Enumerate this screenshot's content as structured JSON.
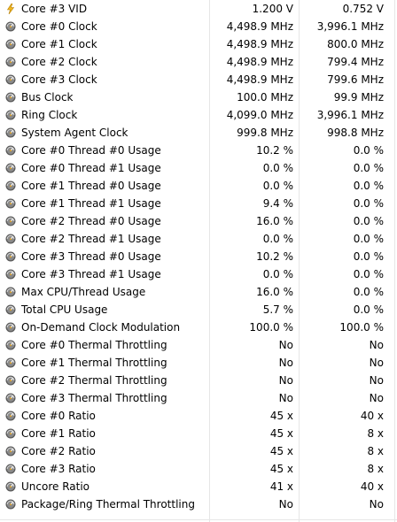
{
  "rows": [
    {
      "icon": "lightning-icon",
      "label": "Core #3 VID",
      "v1": "1.200 V",
      "v2": "0.752 V"
    },
    {
      "icon": "gauge-icon",
      "label": "Core #0 Clock",
      "v1": "4,498.9 MHz",
      "v2": "3,996.1 MHz"
    },
    {
      "icon": "gauge-icon",
      "label": "Core #1 Clock",
      "v1": "4,498.9 MHz",
      "v2": "800.0 MHz"
    },
    {
      "icon": "gauge-icon",
      "label": "Core #2 Clock",
      "v1": "4,498.9 MHz",
      "v2": "799.4 MHz"
    },
    {
      "icon": "gauge-icon",
      "label": "Core #3 Clock",
      "v1": "4,498.9 MHz",
      "v2": "799.6 MHz"
    },
    {
      "icon": "gauge-icon",
      "label": "Bus Clock",
      "v1": "100.0 MHz",
      "v2": "99.9 MHz"
    },
    {
      "icon": "gauge-icon",
      "label": "Ring Clock",
      "v1": "4,099.0 MHz",
      "v2": "3,996.1 MHz"
    },
    {
      "icon": "gauge-icon",
      "label": "System Agent Clock",
      "v1": "999.8 MHz",
      "v2": "998.8 MHz"
    },
    {
      "icon": "gauge-icon",
      "label": "Core #0 Thread #0 Usage",
      "v1": "10.2 %",
      "v2": "0.0 %"
    },
    {
      "icon": "gauge-icon",
      "label": "Core #0 Thread #1 Usage",
      "v1": "0.0 %",
      "v2": "0.0 %"
    },
    {
      "icon": "gauge-icon",
      "label": "Core #1 Thread #0 Usage",
      "v1": "0.0 %",
      "v2": "0.0 %"
    },
    {
      "icon": "gauge-icon",
      "label": "Core #1 Thread #1 Usage",
      "v1": "9.4 %",
      "v2": "0.0 %"
    },
    {
      "icon": "gauge-icon",
      "label": "Core #2 Thread #0 Usage",
      "v1": "16.0 %",
      "v2": "0.0 %"
    },
    {
      "icon": "gauge-icon",
      "label": "Core #2 Thread #1 Usage",
      "v1": "0.0 %",
      "v2": "0.0 %"
    },
    {
      "icon": "gauge-icon",
      "label": "Core #3 Thread #0 Usage",
      "v1": "10.2 %",
      "v2": "0.0 %"
    },
    {
      "icon": "gauge-icon",
      "label": "Core #3 Thread #1 Usage",
      "v1": "0.0 %",
      "v2": "0.0 %"
    },
    {
      "icon": "gauge-icon",
      "label": "Max CPU/Thread Usage",
      "v1": "16.0 %",
      "v2": "0.0 %"
    },
    {
      "icon": "gauge-icon",
      "label": "Total CPU Usage",
      "v1": "5.7 %",
      "v2": "0.0 %"
    },
    {
      "icon": "gauge-icon",
      "label": "On-Demand Clock Modulation",
      "v1": "100.0 %",
      "v2": "100.0 %"
    },
    {
      "icon": "gauge-icon",
      "label": "Core #0 Thermal Throttling",
      "v1": "No",
      "v2": "No"
    },
    {
      "icon": "gauge-icon",
      "label": "Core #1 Thermal Throttling",
      "v1": "No",
      "v2": "No"
    },
    {
      "icon": "gauge-icon",
      "label": "Core #2 Thermal Throttling",
      "v1": "No",
      "v2": "No"
    },
    {
      "icon": "gauge-icon",
      "label": "Core #3 Thermal Throttling",
      "v1": "No",
      "v2": "No"
    },
    {
      "icon": "gauge-icon",
      "label": "Core #0 Ratio",
      "v1": "45 x",
      "v2": "40 x"
    },
    {
      "icon": "gauge-icon",
      "label": "Core #1 Ratio",
      "v1": "45 x",
      "v2": "8 x"
    },
    {
      "icon": "gauge-icon",
      "label": "Core #2 Ratio",
      "v1": "45 x",
      "v2": "8 x"
    },
    {
      "icon": "gauge-icon",
      "label": "Core #3 Ratio",
      "v1": "45 x",
      "v2": "8 x"
    },
    {
      "icon": "gauge-icon",
      "label": "Uncore Ratio",
      "v1": "41 x",
      "v2": "40 x"
    },
    {
      "icon": "gauge-icon",
      "label": "Package/Ring Thermal Throttling",
      "v1": "No",
      "v2": "No"
    }
  ]
}
